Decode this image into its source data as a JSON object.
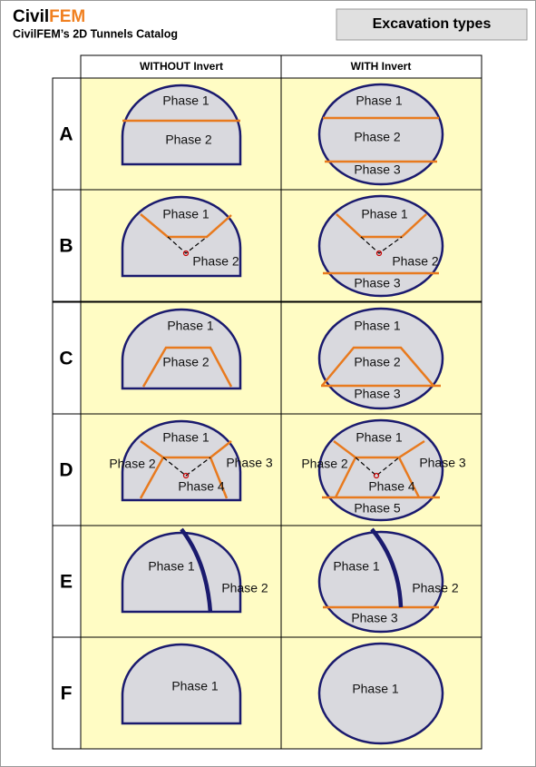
{
  "header": {
    "brand_left": "Civil",
    "brand_right": "FEM",
    "subtitle": "CivilFEM’s 2D Tunnels Catalog",
    "title": "Excavation types"
  },
  "table": {
    "columns": [
      "WITHOUT Invert",
      "WITH Invert"
    ],
    "rows": [
      {
        "label": "A",
        "without": [
          "Phase 1",
          "Phase 2"
        ],
        "with": [
          "Phase 1",
          "Phase 2",
          "Phase 3"
        ]
      },
      {
        "label": "B",
        "without": [
          "Phase 1",
          "Phase 2"
        ],
        "with": [
          "Phase 1",
          "Phase 2",
          "Phase 3"
        ]
      },
      {
        "label": "C",
        "without": [
          "Phase 1",
          "Phase 2"
        ],
        "with": [
          "Phase 1",
          "Phase 2",
          "Phase 3"
        ]
      },
      {
        "label": "D",
        "without": [
          "Phase 1",
          "Phase 2",
          "Phase 3",
          "Phase 4"
        ],
        "with": [
          "Phase 1",
          "Phase 2",
          "Phase 3",
          "Phase 4",
          "Phase 5"
        ]
      },
      {
        "label": "E",
        "without": [
          "Phase 1",
          "Phase 2"
        ],
        "with": [
          "Phase 1",
          "Phase 2",
          "Phase 3"
        ]
      },
      {
        "label": "F",
        "without": [
          "Phase 1"
        ],
        "with": [
          "Phase 1"
        ]
      }
    ]
  }
}
